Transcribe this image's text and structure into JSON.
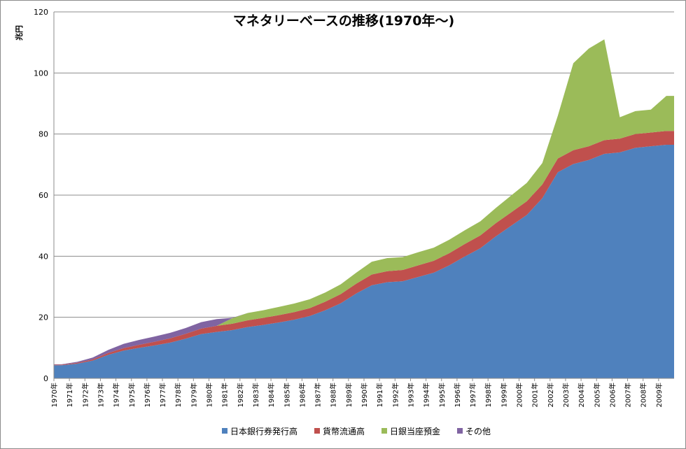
{
  "chart_data": {
    "type": "area",
    "title": "マネタリーベースの推移(1970年～)",
    "ylabel": "兆円",
    "xlabel": "",
    "ylim": [
      0,
      120
    ],
    "yticks": [
      0,
      20,
      40,
      60,
      80,
      100,
      120
    ],
    "grid": "horizontal",
    "legend": "bottom",
    "stacked": true,
    "x": [
      "1970年",
      "1971年",
      "1972年",
      "1973年",
      "1974年",
      "1975年",
      "1976年",
      "1977年",
      "1978年",
      "1979年",
      "1980年",
      "1981年",
      "1982年",
      "1983年",
      "1984年",
      "1985年",
      "1986年",
      "1987年",
      "1988年",
      "1989年",
      "1990年",
      "1991年",
      "1992年",
      "1993年",
      "1994年",
      "1995年",
      "1996年",
      "1997年",
      "1998年",
      "1999年",
      "2000年",
      "2001年",
      "2002年",
      "2003年",
      "2004年",
      "2005年",
      "2006年",
      "2007年",
      "2008年",
      "2009年"
    ],
    "series": [
      {
        "name": "日本銀行券発行高",
        "color": "#4f81bd",
        "values": [
          4.3,
          4.8,
          5.8,
          7.7,
          9.1,
          10.0,
          10.8,
          11.7,
          13.0,
          14.5,
          15.2,
          15.8,
          16.8,
          17.5,
          18.3,
          19.2,
          20.4,
          22.3,
          24.6,
          27.8,
          30.5,
          31.5,
          31.8,
          33.2,
          34.6,
          37.0,
          39.9,
          42.6,
          46.5,
          50.0,
          53.5,
          59.0,
          67.5,
          70.2,
          71.5,
          73.5,
          74.0,
          75.5,
          76.0,
          76.5
        ]
      },
      {
        "name": "貨幣流通高",
        "color": "#c0504d",
        "values": [
          0.2,
          0.3,
          0.4,
          0.6,
          0.8,
          1.0,
          1.2,
          1.4,
          1.6,
          1.8,
          2.0,
          2.1,
          2.2,
          2.3,
          2.4,
          2.5,
          2.6,
          2.8,
          3.0,
          3.2,
          3.5,
          3.6,
          3.7,
          3.8,
          3.9,
          4.0,
          4.1,
          4.2,
          4.3,
          4.4,
          4.5,
          4.5,
          4.5,
          4.5,
          4.5,
          4.5,
          4.5,
          4.5,
          4.5,
          4.5
        ]
      },
      {
        "name": "日銀当座預金",
        "color": "#9bbb59",
        "values": [
          0,
          0,
          0,
          0,
          0,
          0,
          0,
          0,
          0,
          0,
          0,
          1.8,
          2.4,
          2.5,
          2.7,
          2.8,
          2.9,
          3.0,
          3.2,
          3.6,
          4.2,
          4.3,
          4.2,
          4.3,
          4.3,
          4.4,
          4.5,
          4.6,
          5.0,
          5.5,
          6.0,
          7.0,
          14.0,
          28.5,
          32.0,
          33.0,
          7.0,
          7.5,
          7.5,
          11.5
        ]
      },
      {
        "name": "その他",
        "color": "#8064a2",
        "values": [
          0.1,
          0.3,
          0.6,
          1.0,
          1.4,
          1.6,
          1.7,
          1.8,
          1.9,
          2.1,
          2.2,
          0.1,
          0,
          0,
          0,
          0,
          0,
          0,
          0,
          0,
          0,
          0,
          0,
          0,
          0,
          0,
          0,
          0,
          0,
          0,
          0,
          0,
          0,
          0,
          0,
          0,
          0,
          0,
          0,
          0
        ]
      }
    ]
  }
}
